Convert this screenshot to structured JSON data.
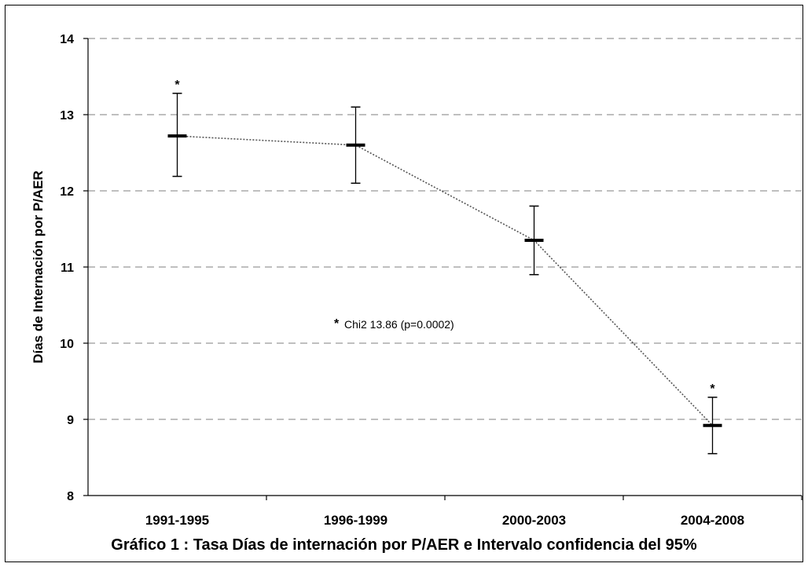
{
  "chart_data": {
    "type": "line",
    "title": "Gráfico 1 : Tasa Días de internación por P/AER e Intervalo confidencia del 95%",
    "xlabel": "",
    "ylabel": "Días de Internación por  P/AER",
    "categories": [
      "1991-1995",
      "1996-1999",
      "2000-2003",
      "2004-2008"
    ],
    "series": [
      {
        "values": [
          12.72,
          12.6,
          11.35,
          8.92
        ],
        "ci_lower": [
          12.19,
          12.1,
          10.9,
          8.55
        ],
        "ci_upper": [
          13.28,
          13.1,
          11.8,
          9.29
        ]
      }
    ],
    "significance_markers": [
      "*",
      "",
      "",
      "*"
    ],
    "annotation": "Chi2 13.86 (p=0.0002)",
    "annotation_marker": "*",
    "ylim": [
      8,
      14
    ],
    "yticks": [
      8,
      9,
      10,
      11,
      12,
      13,
      14
    ],
    "grid": "horizontal dashed",
    "line_style": "dotted",
    "colors": {
      "line": "#555555",
      "grid": "#999999",
      "axis": "#000000"
    }
  }
}
